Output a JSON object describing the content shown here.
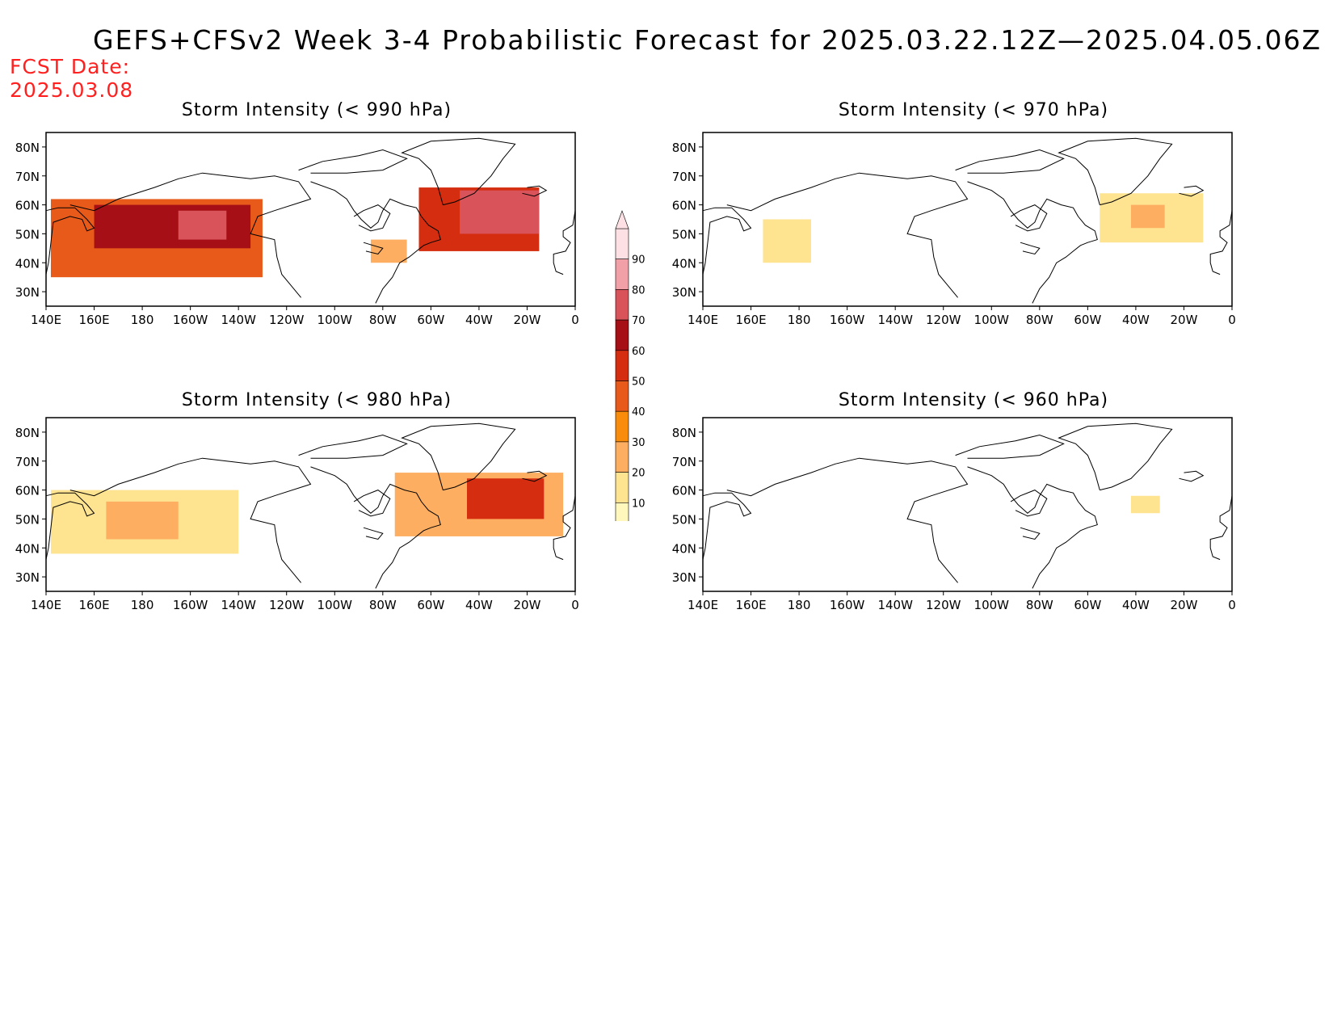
{
  "title": "GEFS+CFSv2 Week 3-4 Probabilistic Forecast for 2025.03.22.12Z—2025.04.05.06Z",
  "fcst_label": "FCST Date:",
  "fcst_date": "2025.03.08",
  "lon_labels": [
    "140E",
    "160E",
    "180",
    "160W",
    "140W",
    "120W",
    "100W",
    "80W",
    "60W",
    "40W",
    "20W",
    "0"
  ],
  "lat_labels": [
    "80N",
    "70N",
    "60N",
    "50N",
    "40N",
    "30N"
  ],
  "colorbar": {
    "ticks": [
      "10",
      "20",
      "30",
      "40",
      "50",
      "60",
      "70",
      "80",
      "90"
    ],
    "colors": [
      "#fff7bc",
      "#fee391",
      "#fdae61",
      "#f98c0a",
      "#e85a1a",
      "#d42d0f",
      "#a50f15",
      "#d9535a",
      "#f2a0a8",
      "#fde0e4"
    ]
  },
  "panels": [
    {
      "id": "p990",
      "title": "Storm Intensity (< 990 hPa)"
    },
    {
      "id": "p970",
      "title": "Storm Intensity (< 970 hPa)"
    },
    {
      "id": "p980",
      "title": "Storm Intensity (< 980 hPa)"
    },
    {
      "id": "p960",
      "title": "Storm Intensity (< 960 hPa)"
    }
  ],
  "chart_data": {
    "type": "heatmap",
    "lon_range": [
      140,
      360
    ],
    "lat_range": [
      25,
      85
    ],
    "value_units": "%",
    "panels": [
      {
        "title": "Storm Intensity (< 990 hPa)",
        "regions": [
          {
            "lon": [
              142,
              230
            ],
            "lat": [
              35,
              62
            ],
            "level": 50
          },
          {
            "lon": [
              160,
              225
            ],
            "lat": [
              45,
              60
            ],
            "level": 70
          },
          {
            "lon": [
              195,
              215
            ],
            "lat": [
              48,
              58
            ],
            "level": 80
          },
          {
            "lon": [
              295,
              345
            ],
            "lat": [
              44,
              66
            ],
            "level": 60
          },
          {
            "lon": [
              312,
              345
            ],
            "lat": [
              50,
              65
            ],
            "level": 80
          },
          {
            "lon": [
              275,
              290
            ],
            "lat": [
              40,
              48
            ],
            "level": 30
          }
        ]
      },
      {
        "title": "Storm Intensity (< 970 hPa)",
        "regions": [
          {
            "lon": [
              165,
              185
            ],
            "lat": [
              40,
              55
            ],
            "level": 20
          },
          {
            "lon": [
              305,
              348
            ],
            "lat": [
              47,
              64
            ],
            "level": 20
          },
          {
            "lon": [
              318,
              332
            ],
            "lat": [
              52,
              60
            ],
            "level": 30
          }
        ]
      },
      {
        "title": "Storm Intensity (< 980 hPa)",
        "regions": [
          {
            "lon": [
              142,
              220
            ],
            "lat": [
              38,
              60
            ],
            "level": 20
          },
          {
            "lon": [
              165,
              195
            ],
            "lat": [
              43,
              56
            ],
            "level": 30
          },
          {
            "lon": [
              285,
              355
            ],
            "lat": [
              44,
              66
            ],
            "level": 30
          },
          {
            "lon": [
              315,
              347
            ],
            "lat": [
              50,
              64
            ],
            "level": 60
          }
        ]
      },
      {
        "title": "Storm Intensity (< 960 hPa)",
        "regions": [
          {
            "lon": [
              318,
              330
            ],
            "lat": [
              52,
              58
            ],
            "level": 20
          }
        ]
      }
    ]
  }
}
